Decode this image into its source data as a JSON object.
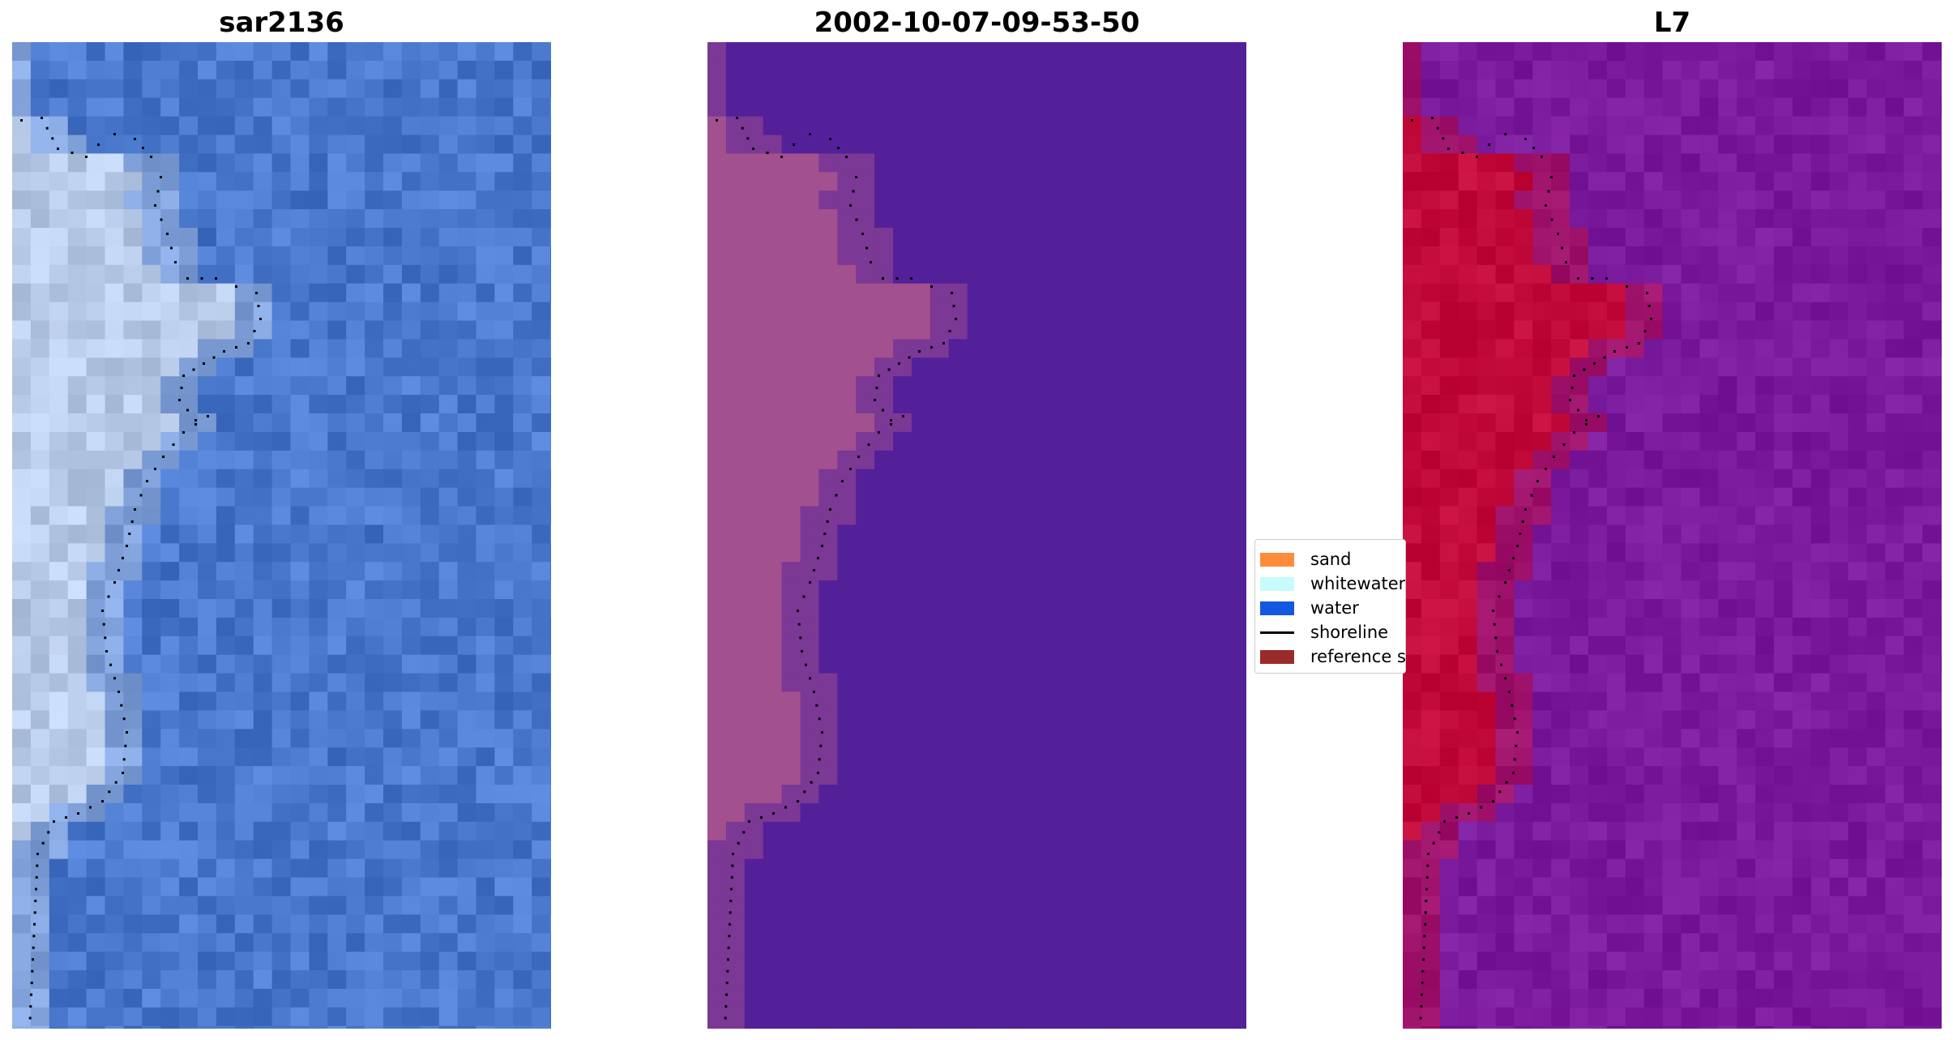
{
  "panels": [
    {
      "title": "sar2136",
      "kind": "rgb"
    },
    {
      "title": "2002-10-07-09-53-50",
      "kind": "classified"
    },
    {
      "title": "L7",
      "kind": "index"
    }
  ],
  "legend": {
    "items": [
      {
        "label": "sand",
        "color": "#ff8c3a",
        "shape": "patch"
      },
      {
        "label": "whitewater",
        "color": "#c8fbfb",
        "shape": "patch"
      },
      {
        "label": "water",
        "color": "#1457e0",
        "shape": "patch"
      },
      {
        "label": "shoreline",
        "color": "#000000",
        "shape": "line"
      },
      {
        "label": "reference s",
        "color": "#9a2b2b",
        "shape": "patch"
      }
    ]
  },
  "colors": {
    "rgb_water": "#4a78cc",
    "rgb_land": "#b8cbe8",
    "class_water": "#53209a",
    "class_land": "#a3508f",
    "index_water": "#7a1a9c",
    "index_land": "#c20a3a"
  }
}
